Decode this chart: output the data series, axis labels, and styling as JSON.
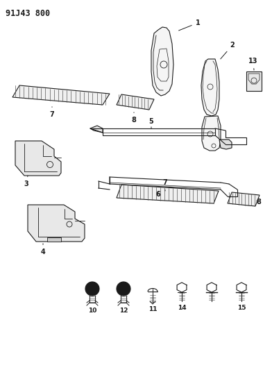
{
  "title": "91J43 800",
  "bg_color": "#ffffff",
  "line_color": "#1a1a1a",
  "title_fontsize": 8.5,
  "fig_width": 3.92,
  "fig_height": 5.33,
  "dpi": 100
}
